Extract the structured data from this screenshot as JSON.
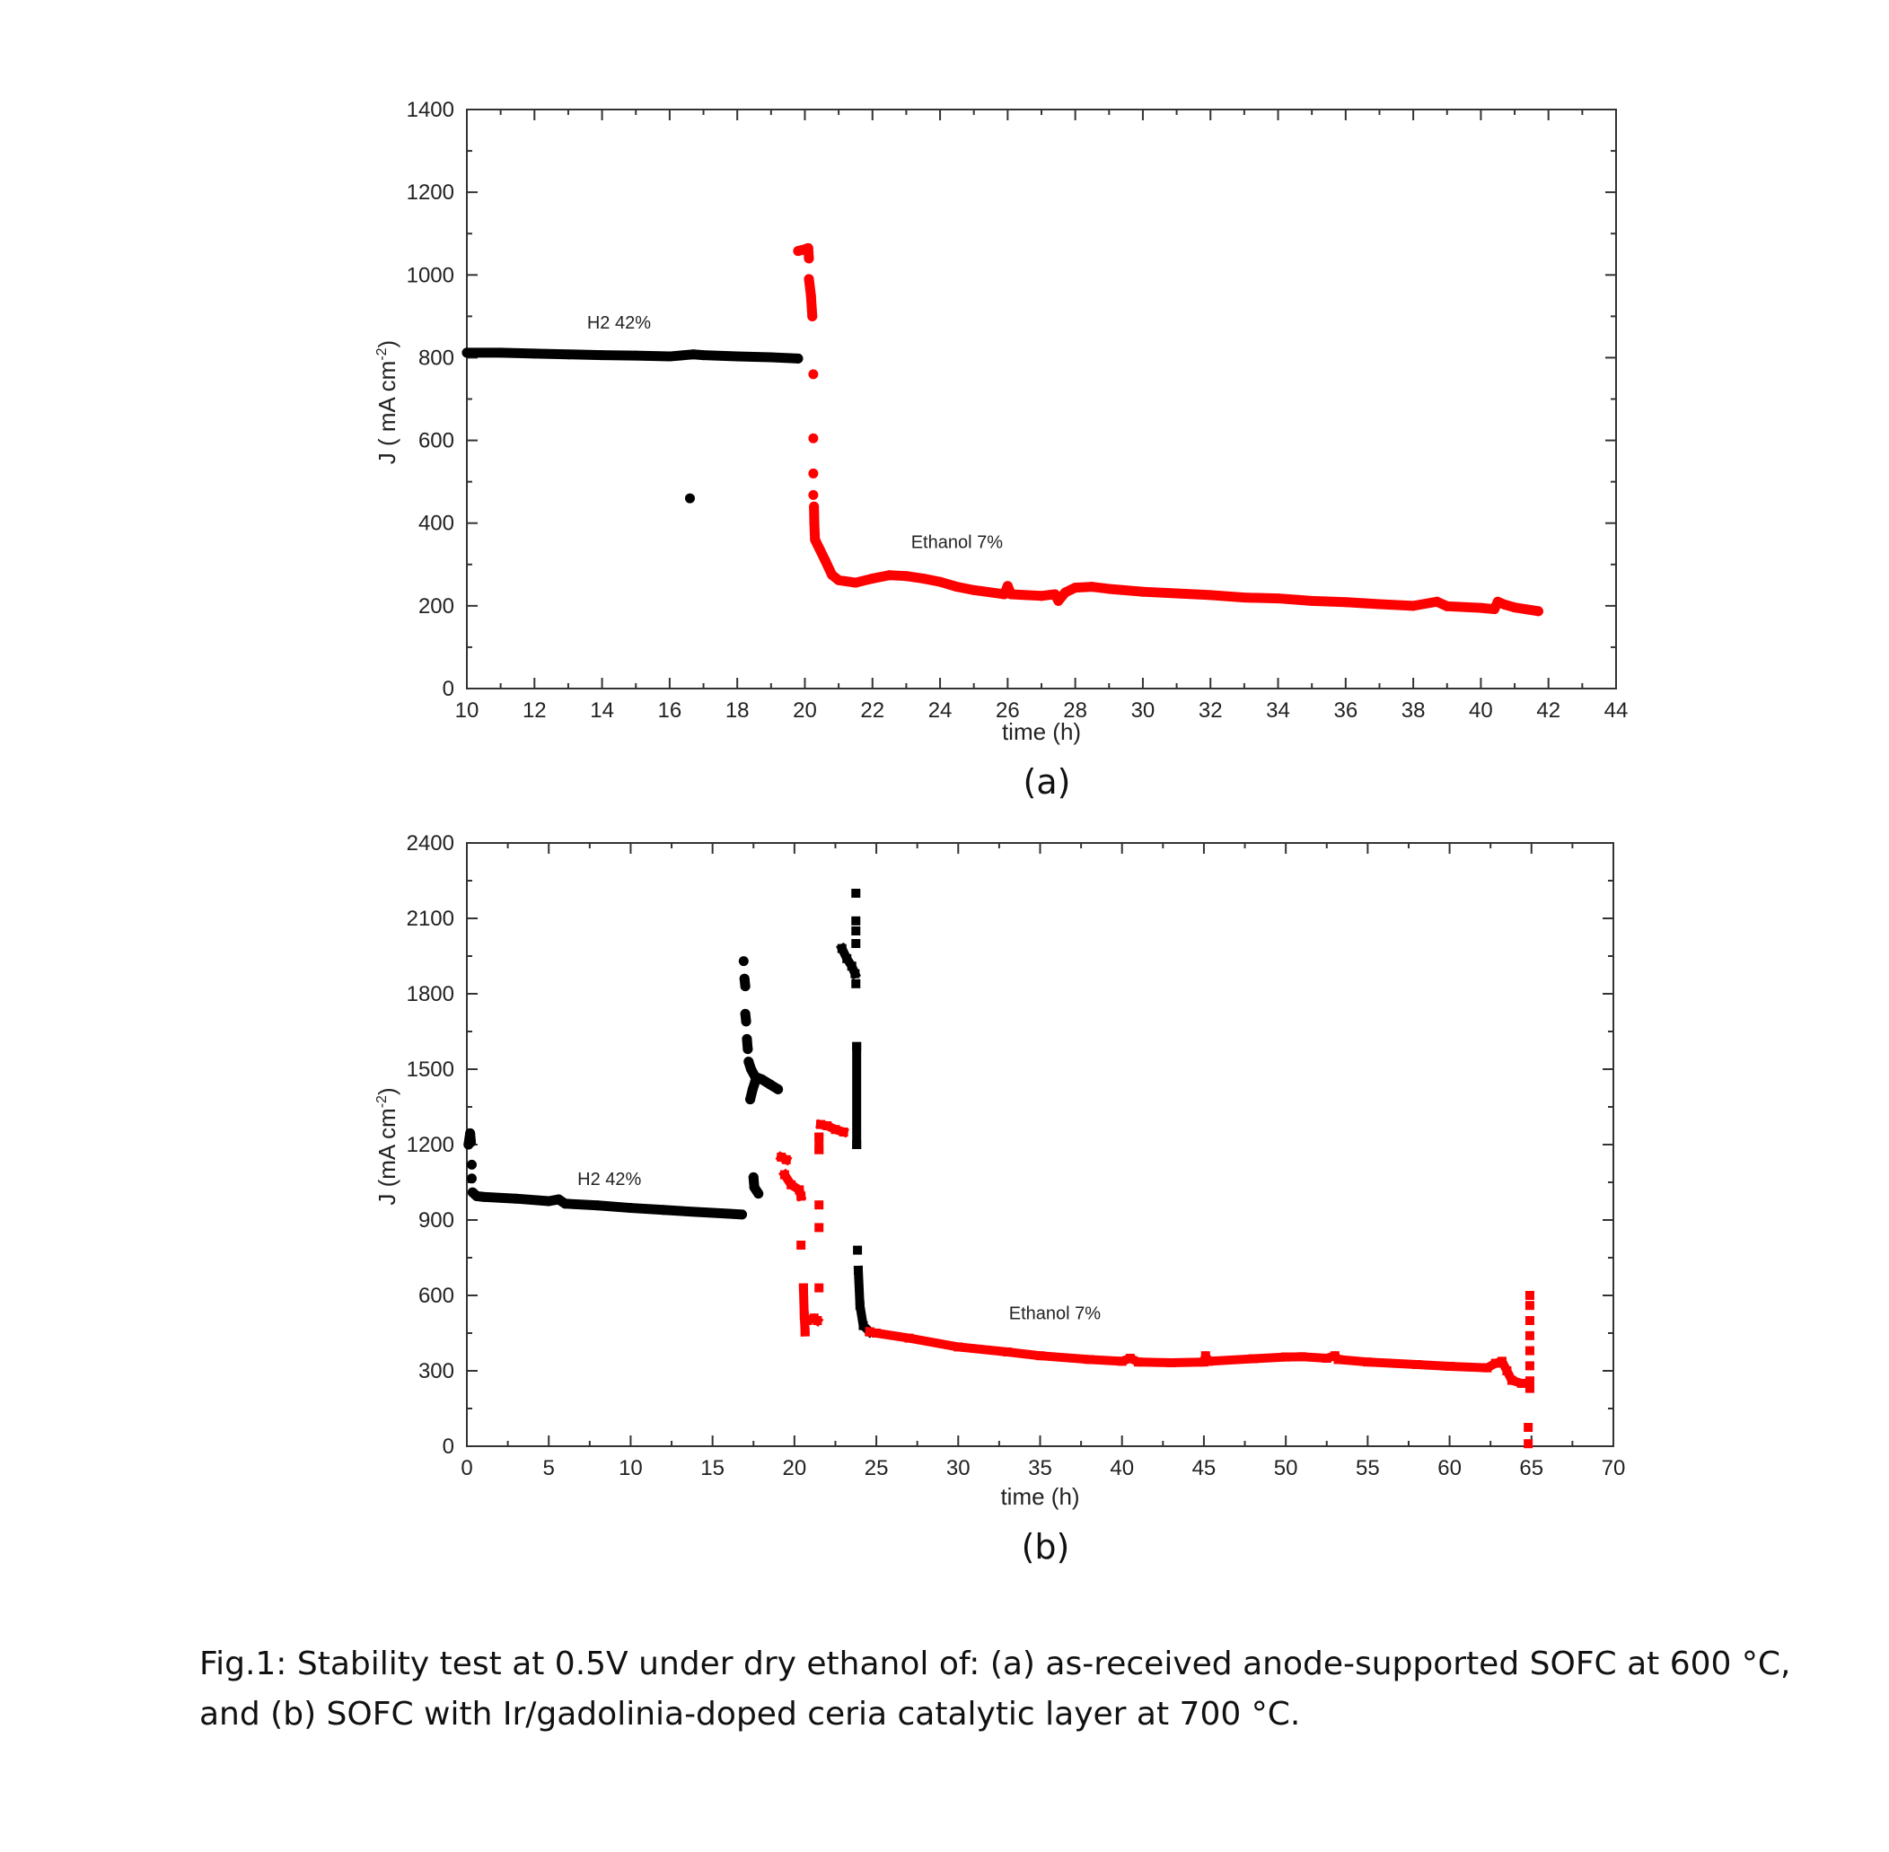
{
  "caption": "Fig.1: Stability test at 0.5V under dry ethanol of: (a) as-received anode-supported SOFC at 600 °C, and (b) SOFC with Ir/gadolinia-doped ceria catalytic layer at 700 °C.",
  "colors": {
    "h2": "#000000",
    "ethanol": "#ff0000"
  },
  "chart_data": [
    {
      "type": "scatter",
      "panel_label": "(a)",
      "xlabel": "time  (h)",
      "ylabel": "J ( mA cm",
      "ylabel_sup": "-2",
      "ylabel_end": ")",
      "xlim": [
        10,
        44
      ],
      "ylim": [
        0,
        1400
      ],
      "xticks": [
        10,
        12,
        14,
        16,
        18,
        20,
        22,
        24,
        26,
        28,
        30,
        32,
        34,
        36,
        38,
        40,
        42,
        44
      ],
      "yticks": [
        0,
        200,
        400,
        600,
        800,
        1000,
        1200,
        1400
      ],
      "x_minor_step": 1,
      "y_minor_step": 100,
      "grid": false,
      "annotations": [
        {
          "text": "H2 42%",
          "x": 14.5,
          "y": 870
        },
        {
          "text": "Ethanol 7%",
          "x": 24.5,
          "y": 340
        }
      ],
      "series": [
        {
          "color": "#000000",
          "marker": "circle",
          "segments": [
            [
              [
                10,
                812
              ],
              [
                11,
                812
              ],
              [
                12,
                810
              ],
              [
                13,
                808
              ],
              [
                14,
                806
              ],
              [
                15,
                805
              ],
              [
                16,
                803
              ],
              [
                16.7,
                808
              ],
              [
                17,
                806
              ],
              [
                18,
                803
              ],
              [
                19,
                801
              ],
              [
                19.8,
                798
              ]
            ],
            [
              [
                16.6,
                460
              ]
            ]
          ]
        },
        {
          "color": "#ff0000",
          "marker": "circle",
          "segments": [
            [
              [
                19.8,
                1058
              ],
              [
                20,
                1062
              ],
              [
                20.1,
                1065
              ],
              [
                20.12,
                1040
              ]
            ],
            [
              [
                20.12,
                990
              ],
              [
                20.18,
                950
              ],
              [
                20.22,
                900
              ]
            ],
            [
              [
                20.25,
                760
              ]
            ],
            [
              [
                20.25,
                605
              ]
            ],
            [
              [
                20.25,
                520
              ]
            ],
            [
              [
                20.25,
                468
              ]
            ],
            [
              [
                20.27,
                440
              ],
              [
                20.28,
                400
              ],
              [
                20.3,
                360
              ],
              [
                20.45,
                335
              ],
              [
                20.6,
                310
              ],
              [
                20.8,
                275
              ],
              [
                21,
                262
              ],
              [
                21.5,
                256
              ],
              [
                22,
                266
              ],
              [
                22.5,
                274
              ],
              [
                23,
                272
              ],
              [
                23.5,
                266
              ],
              [
                24,
                258
              ],
              [
                24.5,
                246
              ],
              [
                25,
                238
              ],
              [
                25.9,
                228
              ],
              [
                26,
                248
              ],
              [
                26.1,
                228
              ],
              [
                27,
                224
              ],
              [
                27.4,
                228
              ],
              [
                27.5,
                212
              ],
              [
                27.7,
                232
              ],
              [
                28,
                244
              ],
              [
                28.5,
                246
              ],
              [
                29,
                241
              ],
              [
                30,
                234
              ],
              [
                31,
                230
              ],
              [
                32,
                226
              ],
              [
                33,
                220
              ],
              [
                34,
                218
              ],
              [
                35,
                212
              ],
              [
                36,
                209
              ],
              [
                37,
                204
              ],
              [
                38,
                200
              ],
              [
                38.7,
                210
              ],
              [
                39,
                199
              ],
              [
                40,
                195
              ],
              [
                40.4,
                192
              ],
              [
                40.5,
                210
              ],
              [
                40.7,
                203
              ],
              [
                41,
                196
              ],
              [
                41.7,
                187
              ]
            ]
          ]
        }
      ]
    },
    {
      "type": "scatter",
      "panel_label": "(b)",
      "xlabel": "time (h)",
      "ylabel": "J (mA cm",
      "ylabel_sup": "-2",
      "ylabel_end": ")",
      "xlim": [
        0,
        70
      ],
      "ylim": [
        0,
        2400
      ],
      "xticks": [
        0,
        5,
        10,
        15,
        20,
        25,
        30,
        35,
        40,
        45,
        50,
        55,
        60,
        65,
        70
      ],
      "yticks": [
        0,
        300,
        600,
        900,
        1200,
        1500,
        1800,
        2100,
        2400
      ],
      "x_minor_step": 2.5,
      "y_minor_step": 150,
      "grid": false,
      "annotations": [
        {
          "text": "H2 42%",
          "x": 8.7,
          "y": 1040
        },
        {
          "text": "Ethanol 7%",
          "x": 35.9,
          "y": 505
        }
      ],
      "series": [
        {
          "color": "#000000",
          "marker": "circle",
          "segments": [
            [
              [
                0.1,
                1200
              ],
              [
                0.2,
                1245
              ],
              [
                0.25,
                1210
              ]
            ],
            [
              [
                0.3,
                1120
              ]
            ],
            [
              [
                0.3,
                1065
              ]
            ],
            [
              [
                0.35,
                1010
              ],
              [
                0.6,
                995
              ],
              [
                1,
                992
              ],
              [
                3,
                985
              ],
              [
                5,
                975
              ],
              [
                5.6,
                982
              ],
              [
                6,
                965
              ],
              [
                8,
                958
              ],
              [
                10,
                948
              ],
              [
                12,
                940
              ],
              [
                14,
                932
              ],
              [
                16,
                925
              ],
              [
                16.8,
                922
              ]
            ],
            [
              [
                16.9,
                1930
              ]
            ],
            [
              [
                16.95,
                1860
              ],
              [
                17,
                1830
              ]
            ],
            [
              [
                17,
                1720
              ],
              [
                17.05,
                1690
              ]
            ],
            [
              [
                17.1,
                1620
              ],
              [
                17.15,
                1580
              ]
            ],
            [
              [
                17.2,
                1530
              ],
              [
                17.35,
                1500
              ],
              [
                17.6,
                1470
              ],
              [
                18,
                1460
              ],
              [
                18.5,
                1440
              ],
              [
                19,
                1420
              ]
            ],
            [
              [
                17.3,
                1380
              ],
              [
                17.45,
                1420
              ],
              [
                17.6,
                1450
              ]
            ],
            [
              [
                17.5,
                1070
              ],
              [
                17.55,
                1030
              ],
              [
                17.8,
                1005
              ]
            ]
          ]
        },
        {
          "color": "#000000",
          "marker": "square",
          "segments": [
            [
              [
                22.9,
                1980
              ],
              [
                23.2,
                1940
              ],
              [
                23.5,
                1910
              ],
              [
                23.7,
                1880
              ]
            ],
            [
              [
                23.75,
                2200
              ]
            ],
            [
              [
                23.75,
                2090
              ]
            ],
            [
              [
                23.75,
                2050
              ]
            ],
            [
              [
                23.75,
                2000
              ]
            ],
            [
              [
                23.75,
                1840
              ]
            ],
            [
              [
                23.8,
                1590
              ],
              [
                23.8,
                1200
              ]
            ],
            [
              [
                23.85,
                780
              ]
            ],
            [
              [
                23.9,
                700
              ],
              [
                24,
                560
              ],
              [
                24.2,
                480
              ],
              [
                24.6,
                455
              ]
            ]
          ]
        },
        {
          "color": "#ff0000",
          "marker": "square",
          "segments": [
            [
              [
                19.2,
                1150
              ],
              [
                19.5,
                1140
              ]
            ],
            [
              [
                19.4,
                1080
              ],
              [
                19.8,
                1040
              ],
              [
                20.3,
                1020
              ],
              [
                20.4,
                995
              ]
            ],
            [
              [
                20.4,
                800
              ]
            ],
            [
              [
                20.55,
                630
              ],
              [
                20.6,
                520
              ],
              [
                20.65,
                455
              ]
            ],
            [
              [
                20.8,
                500
              ],
              [
                21.2,
                510
              ],
              [
                21.4,
                500
              ]
            ],
            [
              [
                21.6,
                1280
              ],
              [
                22,
                1275
              ],
              [
                22.5,
                1260
              ],
              [
                23,
                1250
              ]
            ],
            [
              [
                21.5,
                1230
              ],
              [
                21.5,
                1180
              ]
            ],
            [
              [
                21.5,
                960
              ]
            ],
            [
              [
                21.5,
                870
              ]
            ],
            [
              [
                21.5,
                630
              ]
            ],
            [
              [
                24.6,
                455
              ],
              [
                25,
                450
              ],
              [
                27,
                430
              ],
              [
                30,
                395
              ],
              [
                33,
                375
              ],
              [
                35,
                360
              ],
              [
                38,
                345
              ],
              [
                40,
                338
              ],
              [
                40.5,
                350
              ],
              [
                41,
                335
              ],
              [
                43,
                332
              ],
              [
                45,
                335
              ],
              [
                45.1,
                360
              ],
              [
                45.3,
                338
              ],
              [
                48,
                348
              ],
              [
                50,
                355
              ],
              [
                51,
                356
              ],
              [
                52.5,
                350
              ],
              [
                53,
                360
              ],
              [
                53.2,
                345
              ],
              [
                55,
                335
              ],
              [
                58,
                325
              ],
              [
                60,
                318
              ],
              [
                62.3,
                312
              ],
              [
                62.8,
                330
              ],
              [
                63.2,
                338
              ],
              [
                63.5,
                300
              ],
              [
                63.8,
                262
              ],
              [
                64.4,
                250
              ],
              [
                64.8,
                250
              ]
            ],
            [
              [
                64.9,
                600
              ]
            ],
            [
              [
                64.9,
                560
              ]
            ],
            [
              [
                64.9,
                500
              ]
            ],
            [
              [
                64.9,
                440
              ]
            ],
            [
              [
                64.9,
                380
              ]
            ],
            [
              [
                64.9,
                320
              ]
            ],
            [
              [
                64.9,
                260
              ]
            ],
            [
              [
                64.9,
                230
              ]
            ],
            [
              [
                64.8,
                75
              ]
            ],
            [
              [
                64.8,
                10
              ]
            ]
          ]
        }
      ]
    }
  ]
}
